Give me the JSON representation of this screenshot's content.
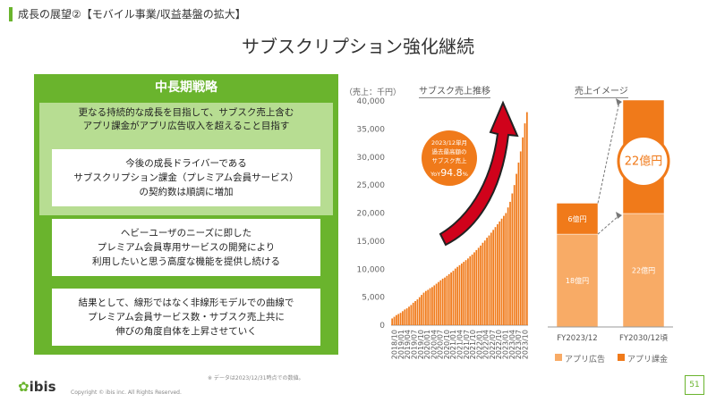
{
  "header": {
    "section": "成長の展望②【モバイル事業/収益基盤の拡大】"
  },
  "title": "サブスクリプション強化継続",
  "strategy": {
    "heading": "中長期戦略",
    "lead": "更なる持続的な成長を目指して、サブスク売上含む\nアプリ課金がアプリ広告収入を超えること目指す",
    "cards": [
      "今後の成長ドライバーである\nサブスクリプション課金（プレミアム会員サービス）\nの契約数は順調に増加",
      "ヘビーユーザのニーズに即した\nプレミアム会員専用サービスの開発により\n利用したいと思う高度な機能を提供し続ける",
      "結果として、線形ではなく非線形モデルでの曲線で\nプレミアム会員サービス数・サブスク売上共に\n伸びの角度自体を上昇させていく"
    ]
  },
  "colors": {
    "accent": "#6ab42d",
    "orange_dark": "#f07a1a",
    "orange_light": "#f8ab66",
    "red": "#d0021b"
  },
  "chart_data": [
    {
      "type": "bar",
      "title": "サブスク売上推移",
      "ylabel": "（売上：千円）",
      "ylim": [
        0,
        40000
      ],
      "yticks": [
        "40,000",
        "35,000",
        "30,000",
        "25,000",
        "20,000",
        "15,000",
        "10,000",
        "5,000",
        "0"
      ],
      "xtick_labels": [
        "2018/10",
        "2019/01",
        "2019/04",
        "2019/07",
        "2019/10",
        "2020/01",
        "2020/04",
        "2020/07",
        "2020/10",
        "2021/01",
        "2021/04",
        "2021/07",
        "2021/10",
        "2022/01",
        "2022/04",
        "2022/07",
        "2022/10",
        "2023/01",
        "2023/04",
        "2023/07",
        "2023/10"
      ],
      "callout": {
        "line1": "2023/12単月",
        "line2": "過去最高額の",
        "line3": "サブスク売上",
        "yoy_prefix": "YoY",
        "yoy_value": "94.8",
        "yoy_suffix": "%"
      },
      "values": [
        1200,
        1500,
        1800,
        2000,
        2200,
        2500,
        2800,
        3000,
        3300,
        3600,
        4000,
        4300,
        4600,
        5000,
        5400,
        5800,
        6100,
        6300,
        6600,
        6800,
        7100,
        7400,
        7700,
        8000,
        8300,
        8500,
        8800,
        9100,
        9400,
        9700,
        10100,
        10400,
        10700,
        11000,
        11300,
        11600,
        11900,
        12300,
        12600,
        13000,
        13400,
        13800,
        14200,
        14700,
        15100,
        15600,
        16000,
        16500,
        17000,
        17500,
        18000,
        18500,
        19000,
        19500,
        20000,
        21000,
        22000,
        23500,
        25000,
        27000,
        29000,
        31000,
        33500,
        36000,
        38000
      ]
    },
    {
      "type": "bar",
      "title": "売上イメージ",
      "categories": [
        "FY2023/12",
        "FY2030/12頃"
      ],
      "series": [
        {
          "name": "アプリ広告",
          "values": [
            18,
            22
          ],
          "labels": [
            "18億円",
            "22億円"
          ]
        },
        {
          "name": "アプリ課金",
          "values": [
            6,
            22
          ],
          "labels": [
            "6億円",
            ""
          ]
        }
      ],
      "annotation": "22億円"
    }
  ],
  "note": "※ データは2023/12/31時点での数値。",
  "footer": {
    "copyright": "Copyright © ibis inc. All Rights Reserved.",
    "logo": "ibis",
    "page": "51"
  }
}
